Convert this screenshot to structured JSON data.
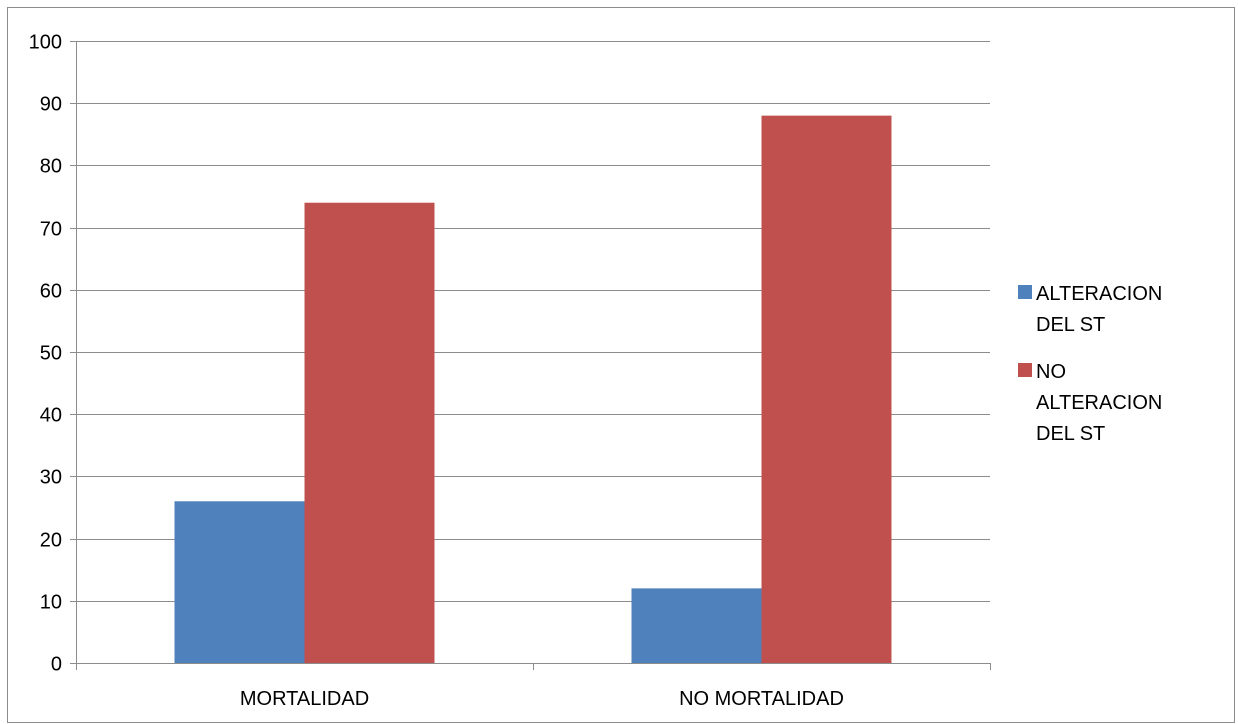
{
  "chart_data": {
    "type": "bar",
    "title": "",
    "xlabel": "",
    "ylabel": "",
    "categories": [
      "MORTALIDAD",
      "NO MORTALIDAD"
    ],
    "series": [
      {
        "name": "ALTERACION DEL ST",
        "values": [
          26,
          12
        ],
        "color": "#4f81bd"
      },
      {
        "name": "NO ALTERACION DEL ST",
        "values": [
          74,
          88
        ],
        "color": "#c0504d"
      }
    ],
    "ylim": [
      0,
      100
    ],
    "yticks": [
      0,
      10,
      20,
      30,
      40,
      50,
      60,
      70,
      80,
      90,
      100
    ],
    "grid": true,
    "legend": {
      "position": "right",
      "entries": [
        {
          "lines": [
            "ALTERACION",
            "DEL ST"
          ],
          "color": "#4f81bd"
        },
        {
          "lines": [
            "NO",
            "ALTERACION",
            "DEL ST"
          ],
          "color": "#c0504d"
        }
      ]
    }
  }
}
